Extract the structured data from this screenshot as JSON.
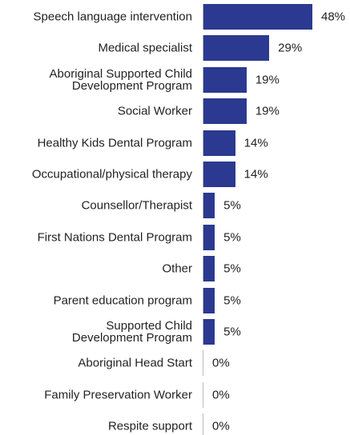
{
  "chart_data": {
    "type": "bar",
    "orientation": "horizontal",
    "categories": [
      "Speech language intervention",
      "Medical specialist",
      "Aboriginal Supported Child\nDevelopment Program",
      "Social Worker",
      "Healthy Kids Dental Program",
      "Occupational/physical therapy",
      "Counsellor/Therapist",
      "First Nations Dental Program",
      "Other",
      "Parent education program",
      "Supported Child\nDevelopment Program",
      "Aboriginal Head Start",
      "Family Preservation Worker",
      "Respite support"
    ],
    "values": [
      48,
      29,
      19,
      19,
      14,
      14,
      5,
      5,
      5,
      5,
      5,
      0,
      0,
      0
    ],
    "value_labels": [
      "48%",
      "29%",
      "19%",
      "19%",
      "14%",
      "14%",
      "5%",
      "5%",
      "5%",
      "5%",
      "5%",
      "0%",
      "0%",
      "0%"
    ],
    "color": "#2b3990"
  }
}
